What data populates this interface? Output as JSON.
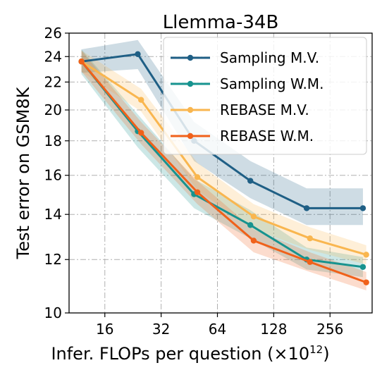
{
  "chart_data": {
    "type": "line",
    "title": "Llemma-34B",
    "xlabel": "Infer. FLOPs per question (×10",
    "xlabel_sup": "12",
    "xlabel_close": ")",
    "ylabel": "Test error on GSM8K",
    "x_scale": "log2",
    "y_scale": "log",
    "xlim": [
      10.3,
      430
    ],
    "ylim": [
      10,
      26
    ],
    "x_ticks": [
      16,
      32,
      64,
      128,
      256
    ],
    "x_tick_labels": [
      "16",
      "32",
      "64",
      "128",
      "256"
    ],
    "y_ticks": [
      10,
      12,
      14,
      16,
      18,
      20,
      22,
      24,
      26
    ],
    "y_tick_labels": [
      "10",
      "12",
      "14",
      "16",
      "18",
      "20",
      "22",
      "24",
      "26"
    ],
    "grid": true,
    "legend_position": "top-right",
    "series": [
      {
        "name": "Sampling M.V.",
        "color": "#1f5f85",
        "x": [
          12,
          24,
          48,
          96,
          192,
          384
        ],
        "y": [
          23.6,
          24.2,
          18.0,
          15.7,
          14.3,
          14.3
        ],
        "lower": [
          22.7,
          23.0,
          16.8,
          14.8,
          13.5,
          13.5
        ],
        "upper": [
          24.6,
          25.4,
          19.2,
          16.8,
          15.3,
          15.3
        ]
      },
      {
        "name": "Sampling W.M.",
        "color": "#17938f",
        "x": [
          12,
          24,
          48,
          96,
          192,
          384
        ],
        "y": [
          23.6,
          18.6,
          15.0,
          13.5,
          12.0,
          11.7
        ],
        "lower": [
          22.6,
          17.6,
          14.3,
          12.9,
          11.6,
          11.3
        ],
        "upper": [
          24.6,
          19.7,
          15.8,
          14.2,
          12.5,
          12.1
        ]
      },
      {
        "name": "REBASE M.V.",
        "color": "#f9b64f",
        "x": [
          12,
          25,
          50,
          100,
          200,
          400
        ],
        "y": [
          23.6,
          20.7,
          15.9,
          13.9,
          12.9,
          12.2
        ],
        "lower": [
          22.8,
          19.9,
          15.2,
          13.3,
          12.4,
          11.8
        ],
        "upper": [
          24.5,
          21.5,
          16.7,
          14.5,
          13.4,
          12.6
        ]
      },
      {
        "name": "REBASE W.M.",
        "color": "#f0611a",
        "x": [
          12,
          25,
          50,
          100,
          200,
          400
        ],
        "y": [
          23.6,
          18.5,
          15.1,
          12.8,
          11.9,
          11.1
        ],
        "lower": [
          22.8,
          17.8,
          14.5,
          12.3,
          11.5,
          10.8
        ],
        "upper": [
          24.5,
          19.2,
          15.7,
          13.3,
          12.3,
          11.5
        ]
      }
    ]
  }
}
